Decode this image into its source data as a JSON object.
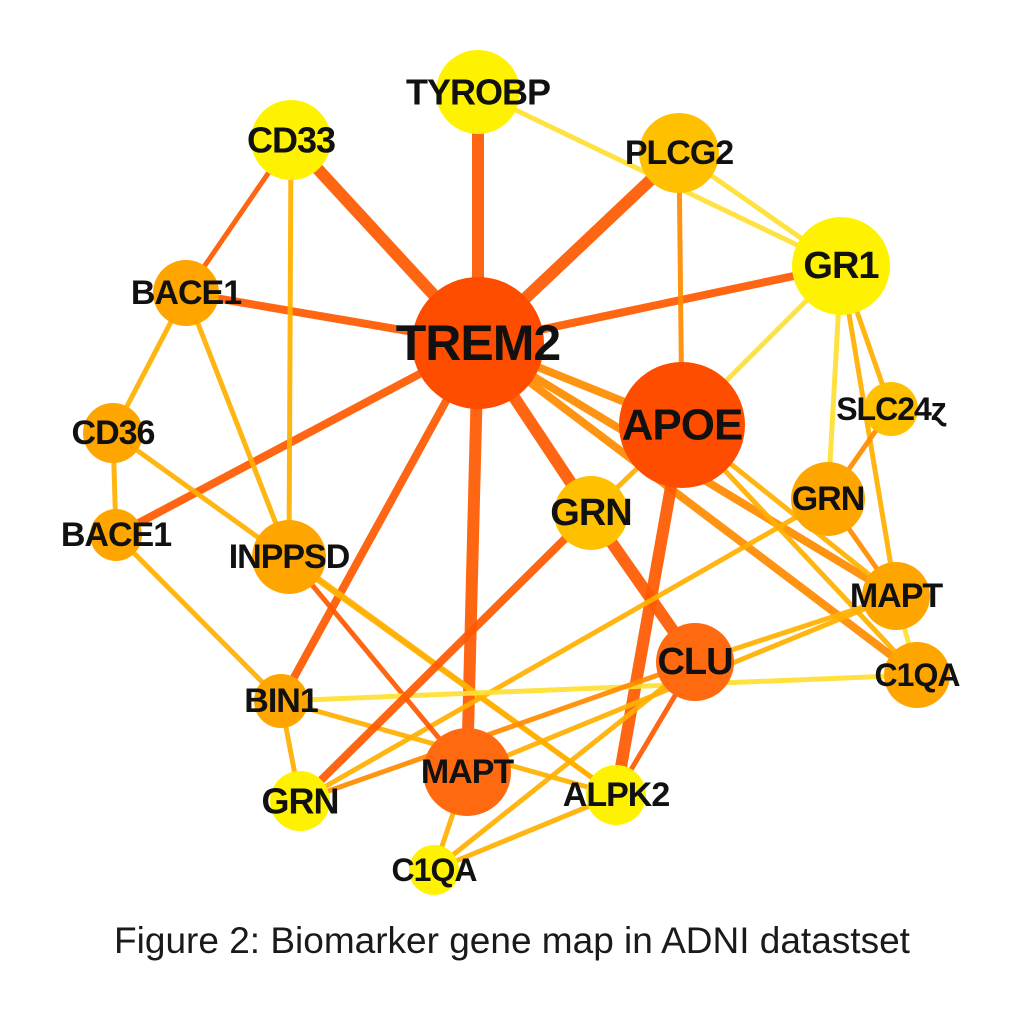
{
  "figure": {
    "caption": "Figure 2: Biomarker gene map in ADNI datastset"
  },
  "colors": {
    "hub": "#FF4D00",
    "strong": "#FF6A10",
    "mid": "#FFA500",
    "light": "#FFC000",
    "pale": "#FFF200",
    "edge_strong": "#FF5A00",
    "edge_mid": "#FF8C00",
    "edge_light": "#FFB000",
    "edge_pale": "#FFE033"
  },
  "chart_data": {
    "type": "network",
    "nodes": [
      {
        "id": "trem2",
        "label": "TREM2",
        "color": "hub"
      },
      {
        "id": "apoe",
        "label": "APOE",
        "color": "hub"
      },
      {
        "id": "tyrobp",
        "label": "TYROBP",
        "color": "pale"
      },
      {
        "id": "cd33",
        "label": "CD33",
        "color": "pale"
      },
      {
        "id": "plcg2",
        "label": "PLCG2",
        "color": "light"
      },
      {
        "id": "gr1",
        "label": "GR1",
        "color": "pale"
      },
      {
        "id": "bace1_a",
        "label": "BACE1",
        "color": "mid"
      },
      {
        "id": "cd36",
        "label": "CD36",
        "color": "mid"
      },
      {
        "id": "bace1_b",
        "label": "BACE1",
        "color": "mid"
      },
      {
        "id": "inppsd",
        "label": "INPPSD",
        "color": "mid"
      },
      {
        "id": "slc24",
        "label": "SLC24ɀ",
        "color": "light"
      },
      {
        "id": "grn_a",
        "label": "GRN",
        "color": "light"
      },
      {
        "id": "grn_b",
        "label": "GRN",
        "color": "mid"
      },
      {
        "id": "mapt_a",
        "label": "MAPT",
        "color": "mid"
      },
      {
        "id": "c1qa_a",
        "label": "C1QA",
        "color": "mid"
      },
      {
        "id": "clu",
        "label": "CLU",
        "color": "strong"
      },
      {
        "id": "bin1",
        "label": "BIN1",
        "color": "mid"
      },
      {
        "id": "grn_c",
        "label": "GRN",
        "color": "pale"
      },
      {
        "id": "mapt_b",
        "label": "MAPT",
        "color": "strong"
      },
      {
        "id": "alpk2",
        "label": "ALPK2",
        "color": "pale"
      },
      {
        "id": "c1qa_b",
        "label": "C1QA",
        "color": "pale"
      }
    ],
    "edges": [
      {
        "source": "trem2",
        "target": "tyrobp",
        "color": "edge_strong",
        "weight": 3
      },
      {
        "source": "trem2",
        "target": "cd33",
        "color": "edge_strong",
        "weight": 3
      },
      {
        "source": "trem2",
        "target": "plcg2",
        "color": "edge_strong",
        "weight": 3
      },
      {
        "source": "trem2",
        "target": "gr1",
        "color": "edge_strong",
        "weight": 2
      },
      {
        "source": "trem2",
        "target": "bace1_a",
        "color": "edge_strong",
        "weight": 2
      },
      {
        "source": "trem2",
        "target": "bace1_b",
        "color": "edge_strong",
        "weight": 2
      },
      {
        "source": "trem2",
        "target": "apoe",
        "color": "edge_mid",
        "weight": 2
      },
      {
        "source": "trem2",
        "target": "grn_a",
        "color": "edge_strong",
        "weight": 3
      },
      {
        "source": "trem2",
        "target": "mapt_b",
        "color": "edge_strong",
        "weight": 3
      },
      {
        "source": "trem2",
        "target": "bin1",
        "color": "edge_strong",
        "weight": 2
      },
      {
        "source": "trem2",
        "target": "mapt_a",
        "color": "edge_mid",
        "weight": 2
      },
      {
        "source": "trem2",
        "target": "c1qa_a",
        "color": "edge_mid",
        "weight": 2
      },
      {
        "source": "grn_a",
        "target": "clu",
        "color": "edge_strong",
        "weight": 3
      },
      {
        "source": "apoe",
        "target": "alpk2",
        "color": "edge_strong",
        "weight": 3
      },
      {
        "source": "apoe",
        "target": "gr1",
        "color": "edge_pale",
        "weight": 1
      },
      {
        "source": "apoe",
        "target": "plcg2",
        "color": "edge_mid",
        "weight": 1
      },
      {
        "source": "apoe",
        "target": "grn_a",
        "color": "edge_light",
        "weight": 1
      },
      {
        "source": "apoe",
        "target": "mapt_a",
        "color": "edge_light",
        "weight": 1
      },
      {
        "source": "apoe",
        "target": "c1qa_a",
        "color": "edge_light",
        "weight": 1
      },
      {
        "source": "tyrobp",
        "target": "gr1",
        "color": "edge_pale",
        "weight": 1
      },
      {
        "source": "plcg2",
        "target": "gr1",
        "color": "edge_pale",
        "weight": 1
      },
      {
        "source": "gr1",
        "target": "slc24",
        "color": "edge_light",
        "weight": 1
      },
      {
        "source": "gr1",
        "target": "grn_b",
        "color": "edge_pale",
        "weight": 1
      },
      {
        "source": "gr1",
        "target": "mapt_a",
        "color": "edge_light",
        "weight": 1
      },
      {
        "source": "slc24",
        "target": "grn_b",
        "color": "edge_mid",
        "weight": 1
      },
      {
        "source": "grn_b",
        "target": "mapt_a",
        "color": "edge_mid",
        "weight": 1
      },
      {
        "source": "grn_b",
        "target": "grn_c",
        "color": "edge_light",
        "weight": 1
      },
      {
        "source": "mapt_a",
        "target": "c1qa_a",
        "color": "edge_pale",
        "weight": 1
      },
      {
        "source": "mapt_a",
        "target": "mapt_b",
        "color": "edge_light",
        "weight": 1
      },
      {
        "source": "cd33",
        "target": "bace1_a",
        "color": "edge_strong",
        "weight": 1
      },
      {
        "source": "cd33",
        "target": "inppsd",
        "color": "edge_light",
        "weight": 1
      },
      {
        "source": "bace1_a",
        "target": "cd36",
        "color": "edge_light",
        "weight": 1
      },
      {
        "source": "bace1_a",
        "target": "inppsd",
        "color": "edge_light",
        "weight": 1
      },
      {
        "source": "cd36",
        "target": "bace1_b",
        "color": "edge_light",
        "weight": 1
      },
      {
        "source": "cd36",
        "target": "alpk2",
        "color": "edge_light",
        "weight": 1
      },
      {
        "source": "bace1_b",
        "target": "bin1",
        "color": "edge_light",
        "weight": 1
      },
      {
        "source": "inppsd",
        "target": "mapt_b",
        "color": "edge_strong",
        "weight": 1
      },
      {
        "source": "inppsd",
        "target": "alpk2",
        "color": "edge_light",
        "weight": 1
      },
      {
        "source": "bin1",
        "target": "grn_c",
        "color": "edge_light",
        "weight": 1
      },
      {
        "source": "bin1",
        "target": "alpk2",
        "color": "edge_light",
        "weight": 1
      },
      {
        "source": "bin1",
        "target": "c1qa_a",
        "color": "edge_pale",
        "weight": 1
      },
      {
        "source": "grn_c",
        "target": "grn_a",
        "color": "edge_strong",
        "weight": 2
      },
      {
        "source": "grn_c",
        "target": "clu",
        "color": "edge_mid",
        "weight": 1
      },
      {
        "source": "clu",
        "target": "alpk2",
        "color": "edge_strong",
        "weight": 1
      },
      {
        "source": "clu",
        "target": "mapt_a",
        "color": "edge_light",
        "weight": 1
      },
      {
        "source": "c1qa_b",
        "target": "alpk2",
        "color": "edge_light",
        "weight": 1
      },
      {
        "source": "c1qa_b",
        "target": "mapt_b",
        "color": "edge_light",
        "weight": 1
      },
      {
        "source": "c1qa_b",
        "target": "clu",
        "color": "edge_light",
        "weight": 1
      }
    ]
  }
}
